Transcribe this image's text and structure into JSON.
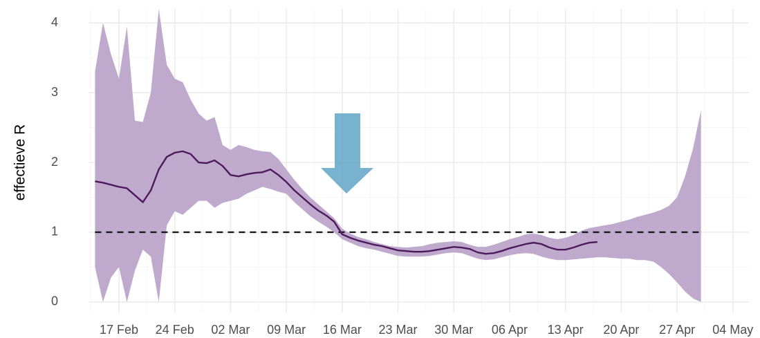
{
  "chart_data": {
    "type": "line",
    "y_label": "effectieve R",
    "x": [
      "14 Feb",
      "15 Feb",
      "16 Feb",
      "17 Feb",
      "18 Feb",
      "19 Feb",
      "20 Feb",
      "21 Feb",
      "22 Feb",
      "23 Feb",
      "24 Feb",
      "25 Feb",
      "26 Feb",
      "27 Feb",
      "28 Feb",
      "29 Feb",
      "01 Mar",
      "02 Mar",
      "03 Mar",
      "04 Mar",
      "05 Mar",
      "06 Mar",
      "07 Mar",
      "08 Mar",
      "09 Mar",
      "10 Mar",
      "11 Mar",
      "12 Mar",
      "13 Mar",
      "14 Mar",
      "15 Mar",
      "16 Mar",
      "17 Mar",
      "18 Mar",
      "19 Mar",
      "20 Mar",
      "21 Mar",
      "22 Mar",
      "23 Mar",
      "24 Mar",
      "25 Mar",
      "26 Mar",
      "27 Mar",
      "28 Mar",
      "29 Mar",
      "30 Mar",
      "31 Mar",
      "01 Apr",
      "02 Apr",
      "03 Apr",
      "04 Apr",
      "05 Apr",
      "06 Apr",
      "07 Apr",
      "08 Apr",
      "09 Apr",
      "10 Apr",
      "11 Apr",
      "12 Apr",
      "13 Apr",
      "14 Apr",
      "15 Apr",
      "16 Apr",
      "17 Apr",
      "18 Apr",
      "19 Apr",
      "20 Apr",
      "21 Apr",
      "22 Apr",
      "23 Apr",
      "24 Apr",
      "25 Apr",
      "26 Apr",
      "27 Apr",
      "28 Apr",
      "29 Apr",
      "30 Apr",
      "01 May",
      "02 May",
      "03 May",
      "04 May"
    ],
    "series": [
      {
        "color": "#4b1a5c",
        "values": [
          1.73,
          1.71,
          1.68,
          1.65,
          1.63,
          1.53,
          1.43,
          1.6,
          1.9,
          2.08,
          2.14,
          2.16,
          2.12,
          2.0,
          1.99,
          2.03,
          1.95,
          1.82,
          1.8,
          1.83,
          1.85,
          1.86,
          1.9,
          1.82,
          1.72,
          1.6,
          1.5,
          1.4,
          1.31,
          1.24,
          1.15,
          0.97,
          0.92,
          0.88,
          0.85,
          0.82,
          0.8,
          0.77,
          0.74,
          0.73,
          0.72,
          0.72,
          0.73,
          0.75,
          0.77,
          0.79,
          0.78,
          0.76,
          0.71,
          0.69,
          0.7,
          0.73,
          0.77,
          0.8,
          0.83,
          0.85,
          0.83,
          0.78,
          0.75,
          0.75,
          0.78,
          0.82,
          0.85,
          0.86,
          null,
          null,
          null,
          null,
          null,
          null,
          null,
          null,
          null,
          null,
          null,
          null,
          null,
          null,
          null,
          null,
          null
        ]
      }
    ],
    "band": {
      "color": "#bfa9cc",
      "upper": [
        3.3,
        4.0,
        3.55,
        3.2,
        3.95,
        2.6,
        2.58,
        3.0,
        4.2,
        3.4,
        3.2,
        3.15,
        2.9,
        2.7,
        2.6,
        2.65,
        2.25,
        2.18,
        2.25,
        2.22,
        2.18,
        2.16,
        2.15,
        2.05,
        1.9,
        1.75,
        1.62,
        1.5,
        1.4,
        1.3,
        1.2,
        1.05,
        0.98,
        0.93,
        0.9,
        0.86,
        0.83,
        0.8,
        0.79,
        0.78,
        0.79,
        0.8,
        0.83,
        0.85,
        0.86,
        0.87,
        0.86,
        0.82,
        0.79,
        0.79,
        0.82,
        0.86,
        0.9,
        0.93,
        0.97,
        0.98,
        0.96,
        0.92,
        0.9,
        0.92,
        0.96,
        1.02,
        1.06,
        1.08,
        1.1,
        1.12,
        1.15,
        1.18,
        1.22,
        1.25,
        1.28,
        1.32,
        1.38,
        1.5,
        1.8,
        2.2,
        2.75,
        null,
        null,
        null,
        null
      ],
      "lower": [
        0.5,
        0.0,
        0.35,
        0.5,
        0.0,
        0.45,
        0.75,
        0.65,
        0.0,
        1.1,
        1.3,
        1.25,
        1.35,
        1.45,
        1.45,
        1.35,
        1.42,
        1.45,
        1.48,
        1.55,
        1.6,
        1.65,
        1.62,
        1.58,
        1.55,
        1.43,
        1.33,
        1.23,
        1.15,
        1.08,
        1.0,
        0.9,
        0.85,
        0.8,
        0.77,
        0.75,
        0.72,
        0.69,
        0.66,
        0.65,
        0.65,
        0.65,
        0.66,
        0.68,
        0.7,
        0.71,
        0.7,
        0.66,
        0.62,
        0.6,
        0.61,
        0.64,
        0.67,
        0.69,
        0.7,
        0.69,
        0.65,
        0.62,
        0.6,
        0.6,
        0.61,
        0.62,
        0.63,
        0.64,
        0.64,
        0.63,
        0.62,
        0.62,
        0.6,
        0.6,
        0.58,
        0.5,
        0.4,
        0.28,
        0.15,
        0.05,
        0.0,
        null,
        null,
        null,
        null
      ]
    },
    "hline": 1,
    "xticks": [
      "17 Feb",
      "24 Feb",
      "02 Mar",
      "09 Mar",
      "16 Mar",
      "23 Mar",
      "30 Mar",
      "06 Apr",
      "13 Apr",
      "20 Apr",
      "27 Apr",
      "04 May"
    ],
    "ylim": [
      -0.15,
      4.2
    ],
    "yticks": [
      0,
      1,
      2,
      3,
      4
    ],
    "grid": true
  }
}
